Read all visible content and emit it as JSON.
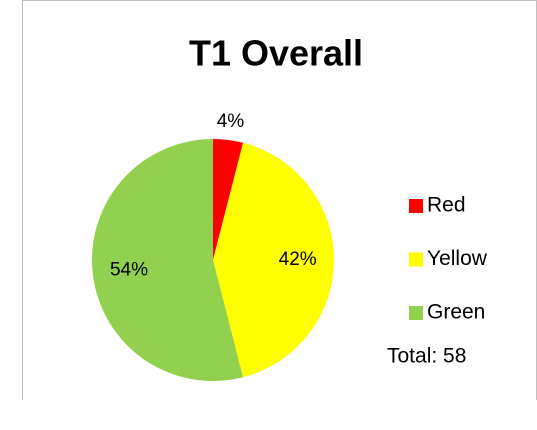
{
  "chart_data": {
    "type": "pie",
    "title": "T1 Overall",
    "categories": [
      "Red",
      "Yellow",
      "Green"
    ],
    "values": [
      4,
      42,
      54
    ],
    "value_labels": [
      "4%",
      "42%",
      "54%"
    ],
    "colors": [
      "#ff0000",
      "#ffff00",
      "#92d050"
    ],
    "legend": "right",
    "annotation": "Total: 58"
  }
}
